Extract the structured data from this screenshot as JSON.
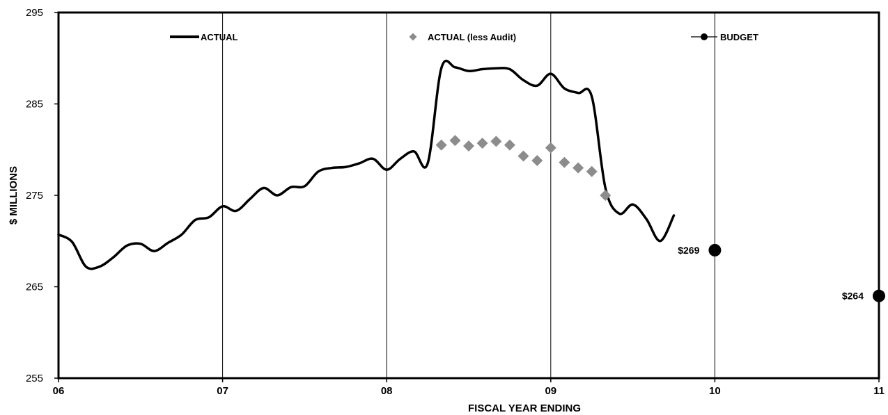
{
  "chart_data": {
    "type": "line",
    "title": "",
    "xlabel": "FISCAL YEAR ENDING",
    "ylabel": "$ MILLIONS",
    "xlim": [
      0,
      5
    ],
    "ylim": [
      255,
      295
    ],
    "x_ticks": [
      0,
      1,
      2,
      3,
      4,
      5
    ],
    "x_tick_labels": [
      "06",
      "07",
      "08",
      "09",
      "10",
      "11"
    ],
    "y_ticks": [
      255,
      265,
      275,
      285,
      295
    ],
    "y_tick_labels": [
      "255",
      "265",
      "275",
      "285",
      "295"
    ],
    "vertical_gridlines": true,
    "horizontal_gridlines": false,
    "legend_position": "top",
    "colors": {
      "actual": "#000000",
      "actual_less_audit": "#8c8c8c",
      "budget": "#000000"
    },
    "series": [
      {
        "name": "ACTUAL",
        "style": "line",
        "x": [
          0,
          0.083,
          0.167,
          0.25,
          0.333,
          0.417,
          0.5,
          0.583,
          0.667,
          0.75,
          0.833,
          0.917,
          1.0,
          1.083,
          1.167,
          1.25,
          1.333,
          1.417,
          1.5,
          1.583,
          1.667,
          1.75,
          1.833,
          1.917,
          2.0,
          2.083,
          2.167,
          2.25,
          2.333,
          2.417,
          2.5,
          2.583,
          2.667,
          2.75,
          2.833,
          2.917,
          3.0,
          3.083,
          3.167,
          3.25,
          3.333,
          3.417,
          3.5,
          3.583,
          3.667,
          3.75
        ],
        "values": [
          270.7,
          269.9,
          267.2,
          267.2,
          268.2,
          269.5,
          269.7,
          268.9,
          269.8,
          270.7,
          272.3,
          272.6,
          273.8,
          273.3,
          274.6,
          275.8,
          275.0,
          275.9,
          276.0,
          277.6,
          278.0,
          278.1,
          278.5,
          279.0,
          277.8,
          279.0,
          279.8,
          278.5,
          288.9,
          289.0,
          288.6,
          288.8,
          288.9,
          288.8,
          287.6,
          287.0,
          288.3,
          286.7,
          286.2,
          285.8,
          275.8,
          273.0,
          274.0,
          272.4,
          270.0,
          272.8
        ]
      },
      {
        "name": "ACTUAL (less Audit)",
        "style": "marker-diamond",
        "x": [
          2.333,
          2.417,
          2.5,
          2.583,
          2.667,
          2.75,
          2.833,
          2.917,
          3.0,
          3.083,
          3.167,
          3.25,
          3.333
        ],
        "values": [
          280.5,
          281.0,
          280.4,
          280.7,
          280.9,
          280.5,
          279.3,
          278.8,
          280.2,
          278.6,
          278.0,
          277.6,
          275.0
        ]
      },
      {
        "name": "BUDGET",
        "style": "line-marker-circle",
        "x": [
          4,
          5
        ],
        "values": [
          269,
          264
        ],
        "point_labels": [
          "$269",
          "$264"
        ]
      }
    ]
  }
}
